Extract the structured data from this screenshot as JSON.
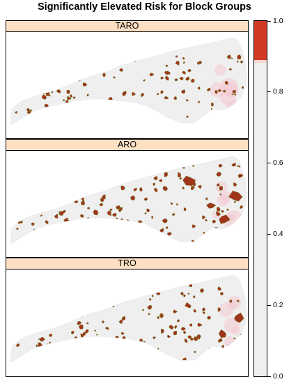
{
  "title": "Significantly Elevated Risk for Block Groups",
  "panels": [
    {
      "label": "TARO"
    },
    {
      "label": "ARO"
    },
    {
      "label": "TRO"
    }
  ],
  "colorkey": {
    "ticks": [
      "0.0",
      "0.2",
      "0.4",
      "0.6",
      "0.8",
      "1.0"
    ],
    "low_color": "#efefef",
    "high_color": "#cf3a24"
  },
  "colors": {
    "land": "#efefef",
    "elevated": "#a0351c",
    "elevated_border": "#6b7a1e",
    "halo": "#f4c9d2",
    "strip": "#fde0c4"
  }
}
